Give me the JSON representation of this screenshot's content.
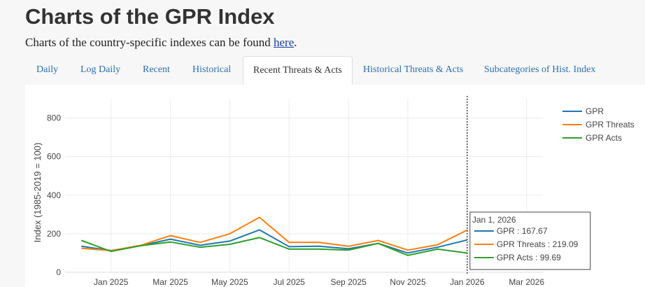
{
  "header": {
    "title": "Charts of the GPR Index",
    "subtitle_text": "Charts of the country-specific indexes can be found ",
    "subtitle_link": "here",
    "subtitle_end": "."
  },
  "tabs": [
    {
      "label": "Daily",
      "active": false
    },
    {
      "label": "Log Daily",
      "active": false
    },
    {
      "label": "Recent",
      "active": false
    },
    {
      "label": "Historical",
      "active": false
    },
    {
      "label": "Recent Threats & Acts",
      "active": true
    },
    {
      "label": "Historical Threats & Acts",
      "active": false
    },
    {
      "label": "Subcategories of Hist. Index",
      "active": false
    }
  ],
  "chart_data": {
    "type": "line",
    "ylabel": "Index (1985-2019 = 100)",
    "xlabel": "",
    "ylim": [
      0,
      900
    ],
    "y_ticks": [
      0,
      200,
      400,
      600,
      800
    ],
    "x_ticks": [
      "Jan 2025",
      "Mar 2025",
      "May 2025",
      "Jul 2025",
      "Sep 2025",
      "Nov 2025",
      "Jan 2026",
      "Mar 2026"
    ],
    "x": [
      "2024-12",
      "2025-01",
      "2025-02",
      "2025-03",
      "2025-04",
      "2025-05",
      "2025-06",
      "2025-07",
      "2025-08",
      "2025-09",
      "2025-10",
      "2025-11",
      "2025-12",
      "2026-01"
    ],
    "series": [
      {
        "name": "GPR",
        "color": "#1f77b4",
        "values": [
          135,
          113,
          138,
          172,
          140,
          162,
          220,
          133,
          135,
          122,
          150,
          100,
          130,
          167.67
        ]
      },
      {
        "name": "GPR Threats",
        "color": "#ff7f0e",
        "values": [
          125,
          112,
          140,
          190,
          155,
          200,
          285,
          155,
          155,
          135,
          165,
          115,
          143,
          219.09
        ]
      },
      {
        "name": "GPR Acts",
        "color": "#2ca02c",
        "values": [
          165,
          108,
          138,
          157,
          130,
          145,
          180,
          120,
          120,
          115,
          150,
          88,
          120,
          99.69
        ]
      }
    ],
    "grid": true,
    "legend": "top-right",
    "hover_line_x": "2026-01",
    "hover": {
      "title": "Jan 1, 2026",
      "rows": [
        {
          "label": "GPR : 167.67",
          "color": "#1f77b4"
        },
        {
          "label": "GPR Threats : 219.09",
          "color": "#ff7f0e"
        },
        {
          "label": "GPR Acts : 99.69",
          "color": "#2ca02c"
        }
      ]
    }
  }
}
